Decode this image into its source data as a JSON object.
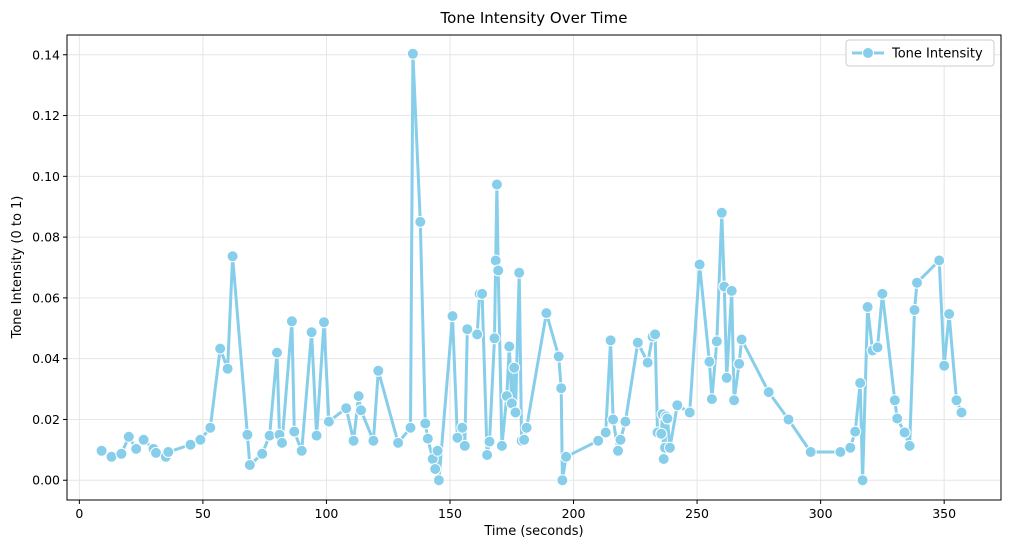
{
  "chart_data": {
    "type": "line",
    "title": "Tone Intensity Over Time",
    "xlabel": "Time (seconds)",
    "ylabel": "Tone Intensity (0 to 1)",
    "xlim": [
      -5,
      373
    ],
    "ylim": [
      -0.0065,
      0.1465
    ],
    "xticks": [
      0,
      50,
      100,
      150,
      200,
      250,
      300,
      350
    ],
    "xtick_labels": [
      "0",
      "50",
      "100",
      "150",
      "200",
      "250",
      "300",
      "350"
    ],
    "yticks": [
      0.0,
      0.02,
      0.04,
      0.06,
      0.08,
      0.1,
      0.12,
      0.14
    ],
    "ytick_labels": [
      "0.00",
      "0.02",
      "0.04",
      "0.06",
      "0.08",
      "0.10",
      "0.12",
      "0.14"
    ],
    "grid": true,
    "legend_position": "top-right",
    "color": "#87ceeb",
    "series": [
      {
        "name": "Tone Intensity",
        "points": [
          [
            9,
            0.0097
          ],
          [
            13,
            0.0077
          ],
          [
            17,
            0.0087
          ],
          [
            20,
            0.0143
          ],
          [
            23,
            0.0103
          ],
          [
            26,
            0.0133
          ],
          [
            30,
            0.0103
          ],
          [
            31,
            0.009
          ],
          [
            35,
            0.0077
          ],
          [
            36,
            0.0093
          ],
          [
            45,
            0.0117
          ],
          [
            49,
            0.0133
          ],
          [
            53,
            0.0173
          ],
          [
            57,
            0.0433
          ],
          [
            60,
            0.0367
          ],
          [
            62,
            0.0737
          ],
          [
            68,
            0.015
          ],
          [
            69,
            0.005
          ],
          [
            74,
            0.0087
          ],
          [
            77,
            0.0147
          ],
          [
            80,
            0.042
          ],
          [
            81,
            0.015
          ],
          [
            82,
            0.0123
          ],
          [
            86,
            0.0523
          ],
          [
            87,
            0.016
          ],
          [
            90,
            0.0097
          ],
          [
            94,
            0.0487
          ],
          [
            96,
            0.0147
          ],
          [
            99,
            0.052
          ],
          [
            101,
            0.0193
          ],
          [
            108,
            0.0237
          ],
          [
            111,
            0.013
          ],
          [
            113,
            0.0277
          ],
          [
            114,
            0.023
          ],
          [
            119,
            0.013
          ],
          [
            121,
            0.036
          ],
          [
            129,
            0.0123
          ],
          [
            134,
            0.0173
          ],
          [
            135,
            0.1403
          ],
          [
            138,
            0.085
          ],
          [
            140,
            0.0187
          ],
          [
            141,
            0.0137
          ],
          [
            143,
            0.007
          ],
          [
            144,
            0.0037
          ],
          [
            145,
            0.0097
          ],
          [
            145.5,
            0.0
          ],
          [
            151,
            0.054
          ],
          [
            153,
            0.014
          ],
          [
            155,
            0.0173
          ],
          [
            156,
            0.0113
          ],
          [
            157,
            0.0497
          ],
          [
            161,
            0.048
          ],
          [
            162,
            0.0613
          ],
          [
            163,
            0.0613
          ],
          [
            165,
            0.0083
          ],
          [
            166,
            0.0127
          ],
          [
            168,
            0.0467
          ],
          [
            168.5,
            0.0723
          ],
          [
            169,
            0.0973
          ],
          [
            169.5,
            0.069
          ],
          [
            171,
            0.0113
          ],
          [
            173,
            0.0277
          ],
          [
            174,
            0.044
          ],
          [
            175,
            0.0253
          ],
          [
            176,
            0.037
          ],
          [
            176.5,
            0.0223
          ],
          [
            178,
            0.0683
          ],
          [
            179,
            0.013
          ],
          [
            180,
            0.0133
          ],
          [
            181,
            0.0173
          ],
          [
            189,
            0.055
          ],
          [
            194,
            0.0407
          ],
          [
            195,
            0.0303
          ],
          [
            195.5,
            0.0
          ],
          [
            197,
            0.0077
          ],
          [
            210,
            0.013
          ],
          [
            213,
            0.0157
          ],
          [
            215,
            0.046
          ],
          [
            216,
            0.02
          ],
          [
            218,
            0.0097
          ],
          [
            219,
            0.0133
          ],
          [
            221,
            0.0193
          ],
          [
            226,
            0.0453
          ],
          [
            230,
            0.0387
          ],
          [
            232,
            0.0473
          ],
          [
            233,
            0.048
          ],
          [
            234,
            0.0157
          ],
          [
            235.5,
            0.0153
          ],
          [
            236,
            0.0217
          ],
          [
            236.5,
            0.007
          ],
          [
            237,
            0.0107
          ],
          [
            237.5,
            0.021
          ],
          [
            238,
            0.0203
          ],
          [
            239,
            0.0107
          ],
          [
            242,
            0.0247
          ],
          [
            247,
            0.0223
          ],
          [
            251,
            0.071
          ],
          [
            255,
            0.039
          ],
          [
            256,
            0.0267
          ],
          [
            258,
            0.0457
          ],
          [
            260,
            0.088
          ],
          [
            261,
            0.0637
          ],
          [
            262,
            0.0337
          ],
          [
            264,
            0.0623
          ],
          [
            265,
            0.0263
          ],
          [
            267,
            0.0383
          ],
          [
            268,
            0.0463
          ],
          [
            279,
            0.029
          ],
          [
            287,
            0.02
          ],
          [
            296,
            0.0093
          ],
          [
            308,
            0.0093
          ],
          [
            312,
            0.0107
          ],
          [
            314,
            0.016
          ],
          [
            316,
            0.032
          ],
          [
            317,
            0.0
          ],
          [
            319,
            0.057
          ],
          [
            321,
            0.0427
          ],
          [
            323,
            0.0437
          ],
          [
            325,
            0.0613
          ],
          [
            330,
            0.0263
          ],
          [
            331,
            0.0203
          ],
          [
            334,
            0.0157
          ],
          [
            336,
            0.0113
          ],
          [
            338,
            0.056
          ],
          [
            339,
            0.065
          ],
          [
            348,
            0.0723
          ],
          [
            350,
            0.0377
          ],
          [
            352,
            0.0547
          ],
          [
            355,
            0.0263
          ],
          [
            357,
            0.0223
          ]
        ]
      }
    ]
  }
}
